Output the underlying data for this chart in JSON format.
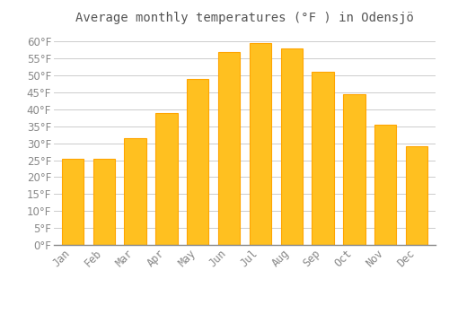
{
  "title": "Average monthly temperatures (°F ) in Odensjö",
  "months": [
    "Jan",
    "Feb",
    "Mar",
    "Apr",
    "May",
    "Jun",
    "Jul",
    "Aug",
    "Sep",
    "Oct",
    "Nov",
    "Dec"
  ],
  "values": [
    25.5,
    25.5,
    31.5,
    39.0,
    49.0,
    57.0,
    59.5,
    58.0,
    51.0,
    44.5,
    35.5,
    29.0
  ],
  "bar_color": "#FFC020",
  "bar_edge_color": "#FFA500",
  "background_color": "#FFFFFF",
  "grid_color": "#CCCCCC",
  "text_color": "#888888",
  "ylim": [
    0,
    63
  ],
  "yticks": [
    0,
    5,
    10,
    15,
    20,
    25,
    30,
    35,
    40,
    45,
    50,
    55,
    60
  ],
  "title_fontsize": 10,
  "tick_fontsize": 8.5
}
